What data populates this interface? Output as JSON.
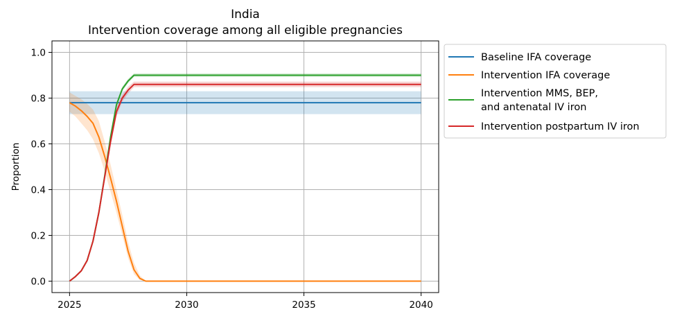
{
  "chart_data": {
    "type": "line",
    "title": "India",
    "subtitle": "Intervention coverage among all eligible pregnancies",
    "xlabel": "",
    "ylabel": "Proportion",
    "xlim": [
      2024.25,
      2040.75
    ],
    "ylim": [
      -0.05,
      1.05
    ],
    "xticks": [
      2025,
      2030,
      2035,
      2040
    ],
    "xtick_labels": [
      "2025",
      "2030",
      "2035",
      "2040"
    ],
    "yticks": [
      0.0,
      0.2,
      0.4,
      0.6,
      0.8,
      1.0
    ],
    "ytick_labels": [
      "0.0",
      "0.2",
      "0.4",
      "0.6",
      "0.8",
      "1.0"
    ],
    "grid": true,
    "legend_position": "outside-right",
    "x": [
      2025.0,
      2025.25,
      2025.5,
      2025.75,
      2026.0,
      2026.25,
      2026.5,
      2026.75,
      2027.0,
      2027.25,
      2027.5,
      2027.75,
      2028.0,
      2028.25,
      2028.5,
      2028.75,
      2029.0,
      2030.0,
      2031.0,
      2032.0,
      2033.0,
      2034.0,
      2035.0,
      2036.0,
      2037.0,
      2038.0,
      2039.0,
      2040.0
    ],
    "series": [
      {
        "name": "Baseline IFA coverage",
        "color": "#1f77b4",
        "values": [
          0.78,
          0.78,
          0.78,
          0.78,
          0.78,
          0.78,
          0.78,
          0.78,
          0.78,
          0.78,
          0.78,
          0.78,
          0.78,
          0.78,
          0.78,
          0.78,
          0.78,
          0.78,
          0.78,
          0.78,
          0.78,
          0.78,
          0.78,
          0.78,
          0.78,
          0.78,
          0.78,
          0.78
        ],
        "lower": [
          0.73,
          0.73,
          0.73,
          0.73,
          0.73,
          0.73,
          0.73,
          0.73,
          0.73,
          0.73,
          0.73,
          0.73,
          0.73,
          0.73,
          0.73,
          0.73,
          0.73,
          0.73,
          0.73,
          0.73,
          0.73,
          0.73,
          0.73,
          0.73,
          0.73,
          0.73,
          0.73,
          0.73
        ],
        "upper": [
          0.83,
          0.83,
          0.83,
          0.83,
          0.83,
          0.83,
          0.83,
          0.83,
          0.83,
          0.83,
          0.83,
          0.83,
          0.83,
          0.83,
          0.83,
          0.83,
          0.83,
          0.83,
          0.83,
          0.83,
          0.83,
          0.83,
          0.83,
          0.83,
          0.83,
          0.83,
          0.83,
          0.83
        ]
      },
      {
        "name": "Intervention IFA coverage",
        "color": "#ff7f0e",
        "values": [
          0.78,
          0.765,
          0.745,
          0.72,
          0.69,
          0.63,
          0.545,
          0.45,
          0.35,
          0.24,
          0.13,
          0.05,
          0.012,
          0.0,
          0.0,
          0.0,
          0.0,
          0.0,
          0.0,
          0.0,
          0.0,
          0.0,
          0.0,
          0.0,
          0.0,
          0.0,
          0.0,
          0.0
        ],
        "lower": [
          0.74,
          0.72,
          0.69,
          0.66,
          0.62,
          0.56,
          0.48,
          0.39,
          0.3,
          0.2,
          0.1,
          0.03,
          0.005,
          0.0,
          0.0,
          0.0,
          0.0,
          0.0,
          0.0,
          0.0,
          0.0,
          0.0,
          0.0,
          0.0,
          0.0,
          0.0,
          0.0,
          0.0
        ],
        "upper": [
          0.825,
          0.81,
          0.795,
          0.775,
          0.75,
          0.7,
          0.61,
          0.51,
          0.4,
          0.29,
          0.17,
          0.08,
          0.025,
          0.0,
          0.0,
          0.0,
          0.0,
          0.0,
          0.0,
          0.0,
          0.0,
          0.0,
          0.0,
          0.0,
          0.0,
          0.0,
          0.0,
          0.0
        ]
      },
      {
        "name": "Intervention MMS, BEP,\nand antenatal IV iron",
        "color": "#2ca02c",
        "values": [
          0.0,
          0.02,
          0.045,
          0.09,
          0.175,
          0.3,
          0.46,
          0.63,
          0.77,
          0.84,
          0.875,
          0.9,
          0.9,
          0.9,
          0.9,
          0.9,
          0.9,
          0.9,
          0.9,
          0.9,
          0.9,
          0.9,
          0.9,
          0.9,
          0.9,
          0.9,
          0.9,
          0.9
        ],
        "lower": [
          0.0,
          0.018,
          0.042,
          0.085,
          0.17,
          0.29,
          0.45,
          0.62,
          0.76,
          0.83,
          0.866,
          0.893,
          0.893,
          0.893,
          0.893,
          0.893,
          0.893,
          0.893,
          0.893,
          0.893,
          0.893,
          0.893,
          0.893,
          0.893,
          0.893,
          0.893,
          0.893,
          0.893
        ],
        "upper": [
          0.0,
          0.022,
          0.048,
          0.095,
          0.18,
          0.31,
          0.47,
          0.64,
          0.78,
          0.85,
          0.884,
          0.908,
          0.908,
          0.908,
          0.908,
          0.908,
          0.908,
          0.908,
          0.908,
          0.908,
          0.908,
          0.908,
          0.908,
          0.908,
          0.908,
          0.908,
          0.908,
          0.908
        ]
      },
      {
        "name": "Intervention postpartum IV iron",
        "color": "#d62728",
        "values": [
          0.0,
          0.02,
          0.045,
          0.09,
          0.175,
          0.3,
          0.455,
          0.61,
          0.74,
          0.8,
          0.835,
          0.86,
          0.86,
          0.86,
          0.86,
          0.86,
          0.86,
          0.86,
          0.86,
          0.86,
          0.86,
          0.86,
          0.86,
          0.86,
          0.86,
          0.86,
          0.86,
          0.86
        ],
        "lower": [
          0.0,
          0.018,
          0.042,
          0.085,
          0.17,
          0.29,
          0.44,
          0.59,
          0.72,
          0.785,
          0.82,
          0.848,
          0.848,
          0.848,
          0.848,
          0.848,
          0.848,
          0.848,
          0.848,
          0.848,
          0.848,
          0.848,
          0.848,
          0.848,
          0.848,
          0.848,
          0.848,
          0.848
        ],
        "upper": [
          0.0,
          0.022,
          0.048,
          0.095,
          0.18,
          0.31,
          0.47,
          0.63,
          0.76,
          0.815,
          0.85,
          0.872,
          0.872,
          0.872,
          0.872,
          0.872,
          0.872,
          0.872,
          0.872,
          0.872,
          0.872,
          0.872,
          0.872,
          0.872,
          0.872,
          0.872,
          0.872,
          0.872
        ]
      }
    ]
  }
}
